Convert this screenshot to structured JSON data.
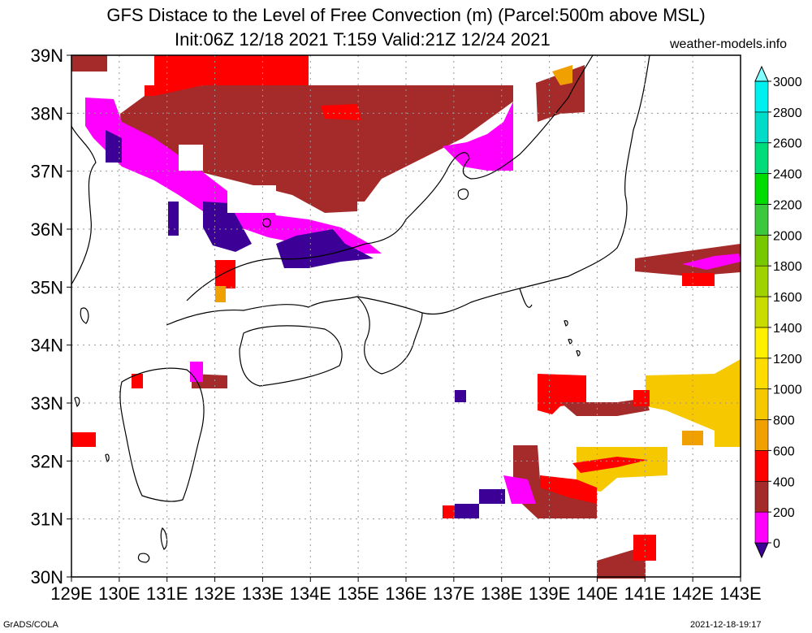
{
  "title": {
    "line1": "GFS Distace to the Level of Free Convection (m) (Parcel:500m above MSL)",
    "line2": "Init:06Z 12/18 2021 T:159 Valid:21Z 12/24 2021",
    "site": "weather-models.info"
  },
  "footer": {
    "credit": "GrADS/COLA",
    "timestamp": "2021-12-18-19:17"
  },
  "map": {
    "lon_range": [
      129,
      143
    ],
    "lat_range": [
      30,
      39
    ],
    "lon_ticks": [
      "129E",
      "130E",
      "131E",
      "132E",
      "133E",
      "134E",
      "135E",
      "136E",
      "137E",
      "138E",
      "139E",
      "140E",
      "141E",
      "142E",
      "143E"
    ],
    "lat_ticks": [
      "30N",
      "31N",
      "32N",
      "33N",
      "34N",
      "35N",
      "36N",
      "37N",
      "38N",
      "39N"
    ],
    "grid": true,
    "grid_style": "dotted"
  },
  "colorbar": {
    "labels": [
      "0",
      "200",
      "400",
      "600",
      "800",
      "1000",
      "1200",
      "1400",
      "1600",
      "1800",
      "2000",
      "2200",
      "2400",
      "2600",
      "2800",
      "3000"
    ],
    "colors": [
      "#3c0096",
      "#ff00ff",
      "#a52a2a",
      "#ff0000",
      "#f0a000",
      "#f5c800",
      "#ffdc00",
      "#fff000",
      "#c8dc00",
      "#a0d200",
      "#78c800",
      "#3cc83c",
      "#00dc00",
      "#00dc78",
      "#00dcc8",
      "#00f0f0",
      "#80ffff"
    ],
    "scale_levels": [
      0,
      200,
      400,
      600,
      800,
      1000,
      1200,
      1400,
      1600,
      1800,
      2000,
      2200,
      2400,
      2600,
      2800,
      3000
    ]
  },
  "colors": {
    "purple": "#3c0096",
    "magenta": "#ff00ff",
    "brown": "#a52a2a",
    "red": "#ff0000",
    "orange": "#f0a000",
    "gold": "#f5c800",
    "coast": "#000000"
  }
}
